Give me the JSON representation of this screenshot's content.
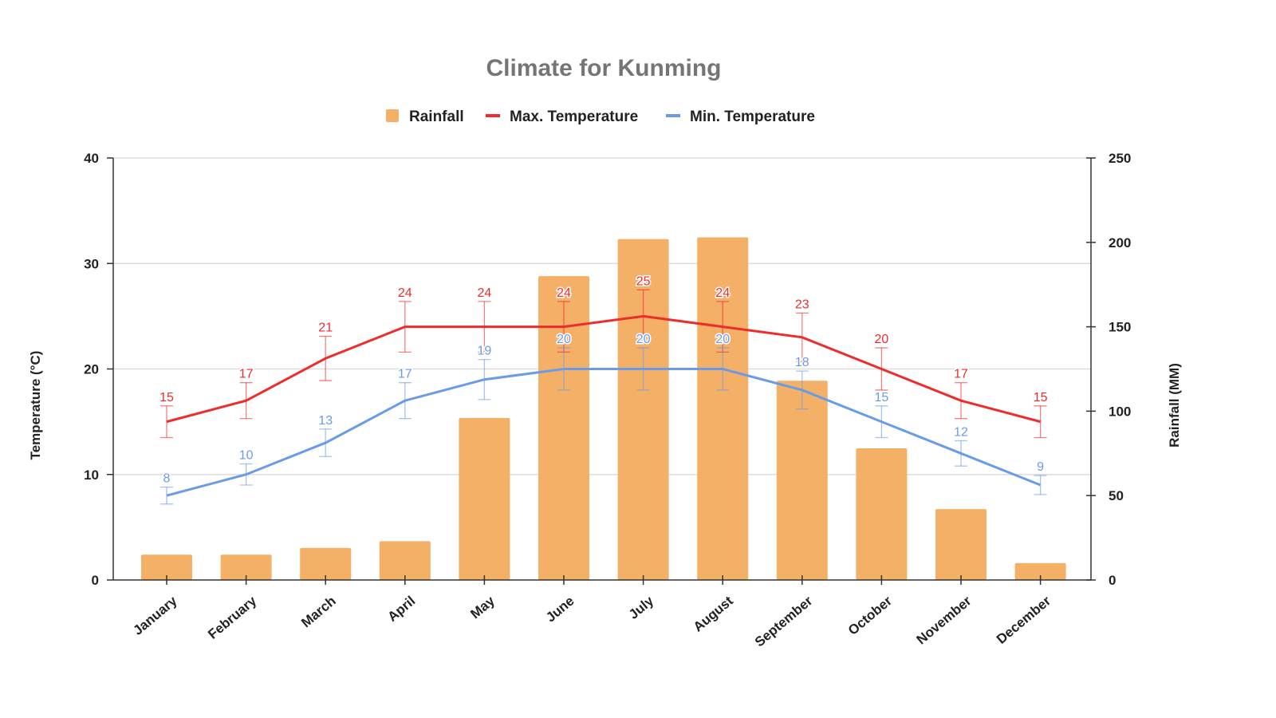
{
  "chart_data": {
    "type": "bar+line",
    "title": "Climate for Kunming",
    "categories": [
      "January",
      "February",
      "March",
      "April",
      "May",
      "June",
      "July",
      "August",
      "September",
      "October",
      "November",
      "December"
    ],
    "series": [
      {
        "name": "Rainfall",
        "type": "bar",
        "axis": "right",
        "color": "#F4B066",
        "values": [
          15,
          15,
          19,
          23,
          96,
          180,
          202,
          203,
          118,
          78,
          42,
          10
        ]
      },
      {
        "name": "Max. Temperature",
        "type": "line",
        "axis": "left",
        "color": "#EE2C2C",
        "values": [
          15,
          17,
          21,
          24,
          24,
          24,
          25,
          24,
          23,
          20,
          17,
          15
        ],
        "error_bars_percent": 10
      },
      {
        "name": "Min. Temperature",
        "type": "line",
        "axis": "left",
        "color": "#6A9BE8",
        "values": [
          8,
          10,
          13,
          17,
          19,
          20,
          20,
          20,
          18,
          15,
          12,
          9
        ],
        "error_bars_percent": 10
      }
    ],
    "ylabel": "Temperature (°C)",
    "y2label": "Rainfall (MM)",
    "ylim": [
      0,
      40
    ],
    "y2lim": [
      0,
      250
    ],
    "yticks": [
      0,
      10,
      20,
      30,
      40
    ],
    "y2ticks": [
      0,
      50,
      100,
      150,
      200,
      250
    ],
    "grid": true,
    "legend": "top-center"
  }
}
